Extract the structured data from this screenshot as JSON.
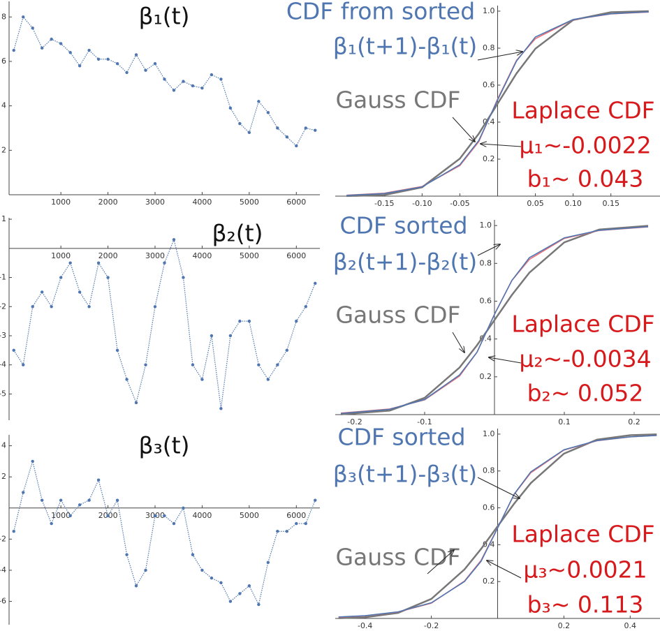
{
  "chart_data": [
    {
      "type": "scatter",
      "title": "β₁(t)",
      "color": "#4f76b0",
      "x": [
        0,
        200,
        400,
        600,
        800,
        1000,
        1200,
        1400,
        1600,
        1800,
        2000,
        2200,
        2400,
        2600,
        2800,
        3000,
        3200,
        3400,
        3600,
        3800,
        4000,
        4200,
        4400,
        4600,
        4800,
        5000,
        5200,
        5400,
        5600,
        5800,
        6000,
        6200,
        6400
      ],
      "values": [
        6.5,
        8.0,
        7.5,
        6.6,
        7.0,
        6.8,
        6.4,
        5.8,
        6.5,
        6.1,
        6.1,
        5.9,
        5.5,
        6.3,
        5.6,
        5.9,
        5.2,
        4.7,
        5.1,
        4.9,
        4.8,
        5.4,
        5.2,
        3.9,
        3.2,
        2.8,
        4.2,
        3.7,
        3.0,
        2.6,
        2.2,
        3.0,
        2.9
      ],
      "xlim": [
        -100,
        6500
      ],
      "ylim": [
        0,
        8.7
      ],
      "xticks": [
        1000,
        2000,
        3000,
        4000,
        5000,
        6000
      ],
      "yticks": [
        2,
        4,
        6,
        8
      ]
    },
    {
      "type": "scatter",
      "title": "β₂(t)",
      "color": "#4f76b0",
      "x": [
        0,
        200,
        400,
        600,
        800,
        1000,
        1200,
        1400,
        1600,
        1800,
        2000,
        2200,
        2400,
        2600,
        2800,
        3000,
        3200,
        3400,
        3600,
        3800,
        4000,
        4200,
        4400,
        4600,
        4800,
        5000,
        5200,
        5400,
        5600,
        5800,
        6000,
        6200,
        6400
      ],
      "values": [
        -3.5,
        -4.0,
        -2.0,
        -1.5,
        -2.0,
        -1.0,
        -0.5,
        -1.5,
        -2.0,
        -0.5,
        -1.0,
        -3.5,
        -4.5,
        -5.3,
        -4.0,
        -2.0,
        -0.5,
        0.3,
        -1.0,
        -4.0,
        -4.5,
        -3.0,
        -5.5,
        -3.0,
        -2.5,
        -2.5,
        -4.0,
        -4.5,
        -4.0,
        -3.5,
        -2.5,
        -2.0,
        -1.2
      ],
      "xlim": [
        -100,
        6500
      ],
      "ylim": [
        -5.9,
        1.05
      ],
      "xticks": [
        1000,
        2000,
        3000,
        4000,
        5000,
        6000
      ],
      "yticks": [
        1,
        -1,
        -2,
        -3,
        -4,
        -5
      ]
    },
    {
      "type": "scatter",
      "title": "β₃(t)",
      "color": "#4f76b0",
      "x": [
        0,
        200,
        400,
        600,
        800,
        1000,
        1200,
        1400,
        1600,
        1800,
        2000,
        2200,
        2400,
        2600,
        2800,
        3000,
        3200,
        3400,
        3600,
        3800,
        4000,
        4200,
        4400,
        4600,
        4800,
        5000,
        5200,
        5400,
        5600,
        5800,
        6000,
        6200,
        6400
      ],
      "values": [
        -1.5,
        1.0,
        3.0,
        0.5,
        -1.0,
        0.5,
        -0.5,
        0.2,
        0.5,
        1.8,
        -0.5,
        0.5,
        -3.0,
        -5.0,
        -4.0,
        -0.5,
        -0.5,
        -1.0,
        0.0,
        -3.0,
        -4.0,
        -4.5,
        -4.8,
        -6.0,
        -5.5,
        -5.0,
        -6.2,
        -3.5,
        -1.5,
        -1.5,
        -1.0,
        -1.0,
        0.5
      ],
      "xlim": [
        -100,
        6500
      ],
      "ylim": [
        -7.5,
        4.7
      ],
      "xticks": [
        1000,
        2000,
        3000,
        4000,
        5000,
        6000
      ],
      "yticks": [
        4,
        2,
        -2,
        -4,
        -6
      ]
    },
    {
      "type": "line",
      "annotations": [
        {
          "text": "CDF from sorted",
          "color": "#4f76b0"
        },
        {
          "text": "β₁(t+1)-β₁(t)",
          "color": "#4f76b0"
        },
        {
          "text": "Gauss CDF",
          "color": "#777777"
        },
        {
          "text": "Laplace CDF",
          "color": "#d7191c"
        },
        {
          "text": "μ₁~-0.0022",
          "color": "#d7191c"
        },
        {
          "text": "b₁~ 0.043",
          "color": "#d7191c"
        }
      ],
      "x": [
        -0.2,
        -0.15,
        -0.1,
        -0.05,
        -0.025,
        0,
        0.025,
        0.05,
        0.1,
        0.15,
        0.2
      ],
      "series": [
        {
          "color": "#777777",
          "values": [
            0.0004,
            0.006,
            0.048,
            0.203,
            0.337,
            0.5,
            0.663,
            0.797,
            0.952,
            0.994,
            1.0
          ]
        },
        {
          "color": "#e8707a",
          "values": [
            0.005,
            0.016,
            0.052,
            0.165,
            0.294,
            0.525,
            0.734,
            0.851,
            0.954,
            0.985,
            0.995
          ]
        },
        {
          "color": "#4f76b0",
          "values": [
            0.004,
            0.014,
            0.05,
            0.17,
            0.3,
            0.52,
            0.73,
            0.86,
            0.955,
            0.986,
            0.996
          ]
        }
      ],
      "xlim": [
        -0.215,
        0.215
      ],
      "ylim": [
        0,
        1.03
      ],
      "xticks": [
        -0.15,
        {
          "value": -0.1,
          "label": "-0.10"
        },
        -0.05,
        0.05,
        {
          "value": 0.1,
          "label": "0.10"
        },
        0.15
      ],
      "yticks": [
        0.2,
        0.4,
        0.6,
        0.8,
        {
          "value": 1,
          "label": "1.0"
        }
      ]
    },
    {
      "type": "line",
      "annotations": [
        {
          "text": "CDF sorted",
          "color": "#4f76b0"
        },
        {
          "text": "β₂(t+1)-β₂(t)",
          "color": "#4f76b0"
        },
        {
          "text": "Gauss CDF",
          "color": "#777777"
        },
        {
          "text": "Laplace CDF",
          "color": "#d7191c"
        },
        {
          "text": "μ₂~-0.0034",
          "color": "#d7191c"
        },
        {
          "text": "b₂~ 0.052",
          "color": "#d7191c"
        }
      ],
      "x": [
        -0.22,
        -0.15,
        -0.1,
        -0.05,
        -0.025,
        0,
        0.025,
        0.05,
        0.1,
        0.15,
        0.22
      ],
      "series": [
        {
          "color": "#777777",
          "values": [
            0.0015,
            0.021,
            0.089,
            0.249,
            0.367,
            0.5,
            0.633,
            0.751,
            0.911,
            0.979,
            0.9985
          ]
        },
        {
          "color": "#e8707a",
          "values": [
            0.008,
            0.03,
            0.078,
            0.204,
            0.33,
            0.531,
            0.71,
            0.821,
            0.932,
            0.974,
            0.993
          ]
        },
        {
          "color": "#4f76b0",
          "values": [
            0.006,
            0.028,
            0.08,
            0.21,
            0.33,
            0.53,
            0.71,
            0.83,
            0.935,
            0.975,
            0.994
          ]
        }
      ],
      "xlim": [
        -0.228,
        0.237
      ],
      "ylim": [
        0,
        1.03
      ],
      "xticks": [
        -0.2,
        -0.1,
        0.1,
        0.2
      ],
      "yticks": [
        0.2,
        0.4,
        0.6,
        0.8,
        {
          "value": 1,
          "label": "1.0"
        }
      ]
    },
    {
      "type": "line",
      "annotations": [
        {
          "text": "CDF sorted",
          "color": "#4f76b0"
        },
        {
          "text": "β₃(t+1)-β₃(t)",
          "color": "#4f76b0"
        },
        {
          "text": "Gauss CDF",
          "color": "#777777"
        },
        {
          "text": "Laplace CDF",
          "color": "#d7191c"
        },
        {
          "text": "μ₃~0.0021",
          "color": "#d7191c"
        },
        {
          "text": "b₃~ 0.113",
          "color": "#d7191c"
        }
      ],
      "x": [
        -0.48,
        -0.4,
        -0.3,
        -0.2,
        -0.1,
        -0.05,
        0,
        0.05,
        0.1,
        0.2,
        0.3,
        0.4,
        0.48
      ],
      "series": [
        {
          "color": "#777777",
          "values": [
            0.0013,
            0.006,
            0.03,
            0.106,
            0.266,
            0.377,
            0.5,
            0.623,
            0.734,
            0.894,
            0.97,
            0.994,
            0.9987
          ]
        },
        {
          "color": "#e8707a",
          "values": [
            0.007,
            0.014,
            0.035,
            0.083,
            0.203,
            0.315,
            0.491,
            0.673,
            0.79,
            0.913,
            0.964,
            0.985,
            0.993
          ]
        },
        {
          "color": "#4f76b0",
          "values": [
            0.008,
            0.015,
            0.036,
            0.085,
            0.2,
            0.31,
            0.49,
            0.675,
            0.795,
            0.915,
            0.965,
            0.985,
            0.993
          ]
        }
      ],
      "xlim": [
        -0.49,
        0.49
      ],
      "ylim": [
        0,
        1.03
      ],
      "xticks": [
        -0.4,
        -0.2,
        0.2,
        0.4
      ],
      "yticks": [
        0.2,
        0.4,
        0.6,
        0.8,
        {
          "value": 1,
          "label": "1.0"
        }
      ]
    }
  ]
}
